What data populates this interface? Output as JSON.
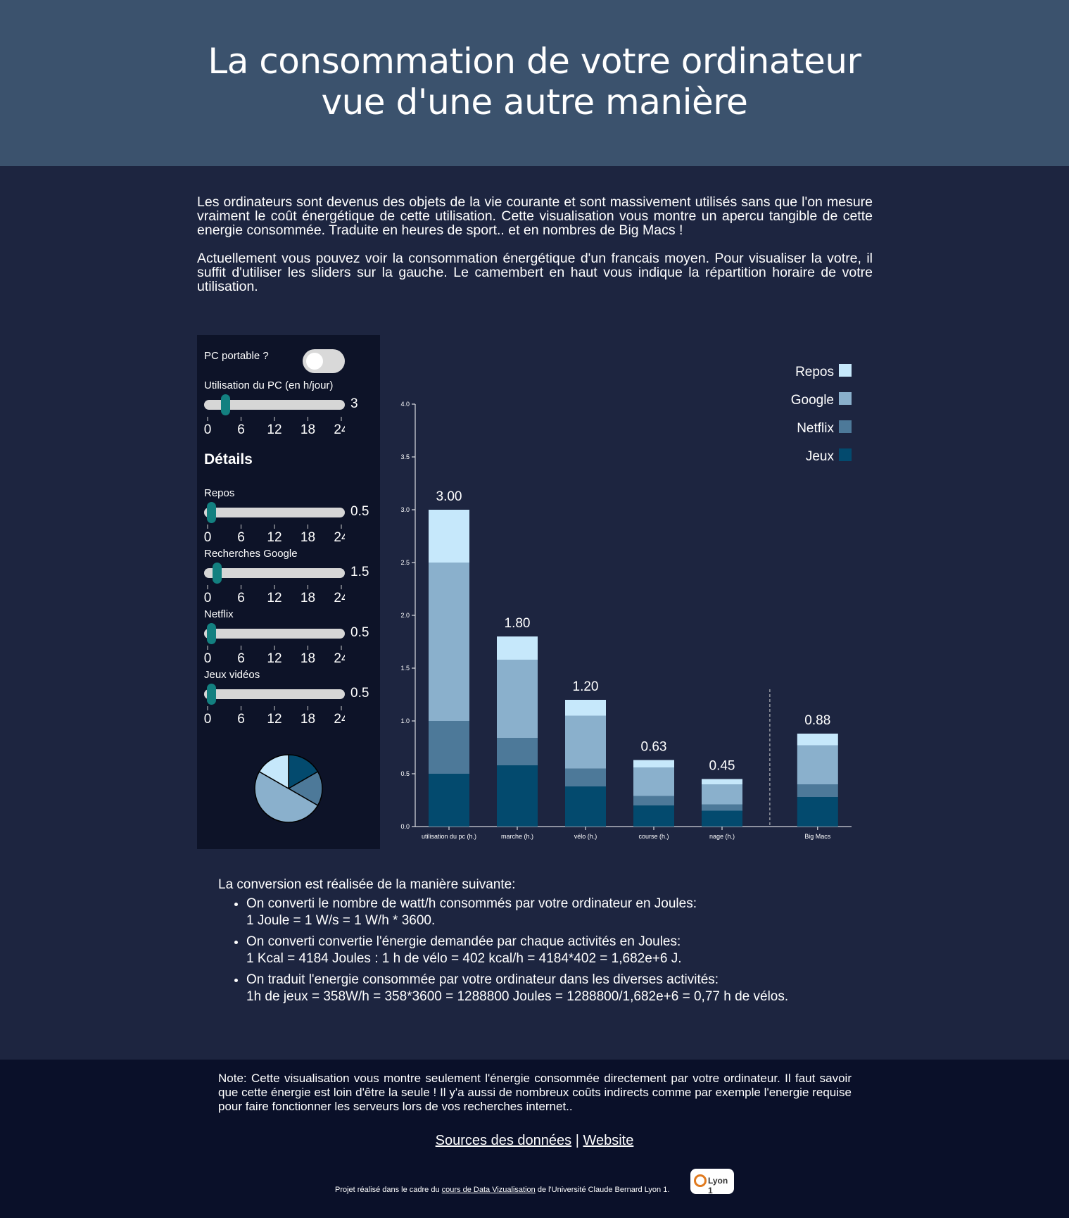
{
  "header": {
    "title_line1": "La consommation de votre ordinateur",
    "title_line2": "vue d'une autre manière"
  },
  "intro": {
    "p1": "Les ordinateurs sont devenus des objets de la vie courante et sont massivement utilisés sans que l'on mesure vraiment le coût énergétique de cette utilisation. Cette visualisation vous montre un apercu tangible de cette energie consommée. Traduite en heures de sport.. et en nombres de Big Macs !",
    "p2": "Actuellement vous pouvez voir la consommation énergétique d'un francais moyen. Pour visualiser la votre, il suffit d'utiliser les sliders sur la gauche. Le camembert en haut vous indique la répartition horaire de votre utilisation."
  },
  "controls": {
    "laptop_label": "PC portable ?",
    "laptop_on": false,
    "usage_label": "Utilisation du PC (en h/jour)",
    "usage_value": "3",
    "details_title": "Détails",
    "tick_labels": [
      "0",
      "6",
      "12",
      "18",
      "24"
    ],
    "sliders": [
      {
        "label": "Repos",
        "value": "0.5"
      },
      {
        "label": "Recherches Google",
        "value": "1.5"
      },
      {
        "label": "Netflix",
        "value": "0.5"
      },
      {
        "label": "Jeux vidéos",
        "value": "0.5"
      }
    ]
  },
  "colors": {
    "repos": "#c6e8fb",
    "google": "#8ab0cc",
    "netflix": "#4d7999",
    "jeux": "#034a6e",
    "thumb": "#138080"
  },
  "chart_data": {
    "type": "bar",
    "stacked": true,
    "categories": [
      "utilisation du pc (h.)",
      "marche (h.)",
      "vélo (h.)",
      "course (h.)",
      "nage (h.)",
      "Big Macs"
    ],
    "series": [
      {
        "name": "Jeux",
        "values": [
          0.5,
          0.58,
          0.38,
          0.2,
          0.15,
          0.28
        ]
      },
      {
        "name": "Netflix",
        "values": [
          0.5,
          0.26,
          0.17,
          0.09,
          0.06,
          0.12
        ]
      },
      {
        "name": "Google",
        "values": [
          1.5,
          0.74,
          0.5,
          0.27,
          0.19,
          0.37
        ]
      },
      {
        "name": "Repos",
        "values": [
          0.5,
          0.22,
          0.15,
          0.07,
          0.05,
          0.11
        ]
      }
    ],
    "totals_labels": [
      "3.00",
      "1.80",
      "1.20",
      "0.63",
      "0.45",
      "0.88"
    ],
    "ylim": [
      0,
      4.0
    ],
    "yticks": [
      "0.0",
      "0.5",
      "1.0",
      "1.5",
      "2.0",
      "2.5",
      "3.0",
      "3.5",
      "4.0"
    ],
    "legend_order": [
      "Repos",
      "Google",
      "Netflix",
      "Jeux"
    ],
    "legend_position": "top-right",
    "separator_before_category": "Big Macs"
  },
  "pie": {
    "slices": [
      {
        "name": "Jeux",
        "value": 0.5
      },
      {
        "name": "Netflix",
        "value": 0.5
      },
      {
        "name": "Google",
        "value": 1.5
      },
      {
        "name": "Repos",
        "value": 0.5
      }
    ]
  },
  "conversion": {
    "title": "La conversion est réalisée de la manière suivante:",
    "items": [
      {
        "line1": "On converti le nombre de watt/h consommés par votre ordinateur en Joules:",
        "line2": "1 Joule = 1 W/s = 1 W/h * 3600."
      },
      {
        "line1": "On converti convertie l'énergie demandée par chaque activités en Joules:",
        "line2": "1 Kcal = 4184 Joules : 1 h de vélo = 402 kcal/h = 4184*402 = 1,682e+6 J."
      },
      {
        "line1": "On traduit l'energie consommée par votre ordinateur dans les diverses activités:",
        "line2": "1h de jeux = 358W/h = 358*3600 = 1288800 Joules = 1288800/1,682e+6 = 0,77 h de vélos."
      }
    ]
  },
  "footer": {
    "note": "Note: Cette visualisation vous montre seulement l'énergie consommée directement par votre ordinateur. Il faut savoir que cette énergie est loin d'être la seule ! Il y'a aussi de nombreux coûts indirects comme par exemple l'energie requise pour faire fonctionner les serveurs lors de vos recherches internet..",
    "link_sources": "Sources des données",
    "separator": "|",
    "link_website": "Website",
    "credit_prefix": "Projet réalisé dans le cadre du ",
    "credit_link": "cours de Data Vizualisation",
    "credit_suffix": " de l'Université Claude Bernard Lyon 1.",
    "badge_text": "Lyon 1"
  }
}
